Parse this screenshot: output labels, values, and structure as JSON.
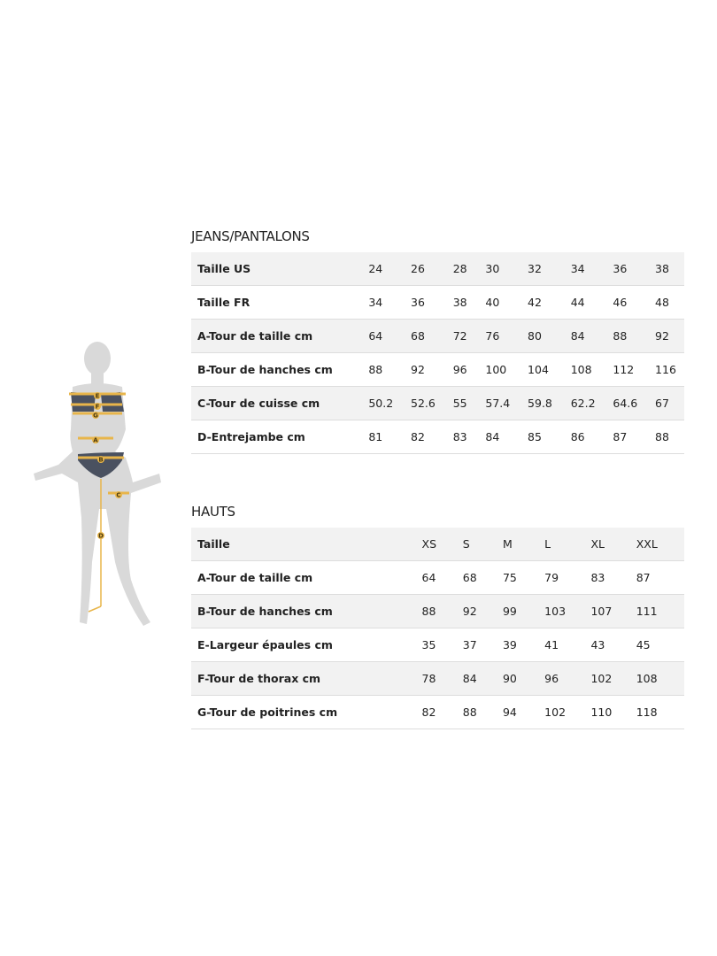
{
  "jeans": {
    "title": "JEANS/PANTALONS",
    "rows": [
      {
        "label": "Taille US",
        "values": [
          "24",
          "26",
          "28",
          "30",
          "32",
          "34",
          "36",
          "38"
        ]
      },
      {
        "label": "Taille FR",
        "values": [
          "34",
          "36",
          "38",
          "40",
          "42",
          "44",
          "46",
          "48"
        ]
      },
      {
        "label": "A-Tour de taille cm",
        "values": [
          "64",
          "68",
          "72",
          "76",
          "80",
          "84",
          "88",
          "92"
        ]
      },
      {
        "label": "B-Tour de hanches cm",
        "values": [
          "88",
          "92",
          "96",
          "100",
          "104",
          "108",
          "112",
          "116"
        ]
      },
      {
        "label": "C-Tour de cuisse cm",
        "values": [
          "50.2",
          "52.6",
          "55",
          "57.4",
          "59.8",
          "62.2",
          "64.6",
          "67"
        ]
      },
      {
        "label": "D-Entrejambe cm",
        "values": [
          "81",
          "82",
          "83",
          "84",
          "85",
          "86",
          "87",
          "88"
        ]
      }
    ]
  },
  "hauts": {
    "title": "HAUTS",
    "rows": [
      {
        "label": "Taille",
        "values": [
          "XS",
          "S",
          "M",
          "L",
          "XL",
          "XXL"
        ]
      },
      {
        "label": "A-Tour de taille cm",
        "values": [
          "64",
          "68",
          "75",
          "79",
          "83",
          "87"
        ]
      },
      {
        "label": "B-Tour de hanches cm",
        "values": [
          "88",
          "92",
          "99",
          "103",
          "107",
          "111"
        ]
      },
      {
        "label": "E-Largeur épaules cm",
        "values": [
          "35",
          "37",
          "39",
          "41",
          "43",
          "45"
        ]
      },
      {
        "label": "F-Tour de thorax cm",
        "values": [
          "78",
          "84",
          "90",
          "96",
          "102",
          "108"
        ]
      },
      {
        "label": "G-Tour de poitrines cm",
        "values": [
          "82",
          "88",
          "94",
          "102",
          "110",
          "118"
        ]
      }
    ]
  },
  "figure": {
    "markers": [
      "E",
      "F",
      "G",
      "A",
      "B",
      "C",
      "D"
    ],
    "colors": {
      "body": "#d9d9d9",
      "garment": "#4a5160",
      "tape": "#e8b54a"
    }
  }
}
